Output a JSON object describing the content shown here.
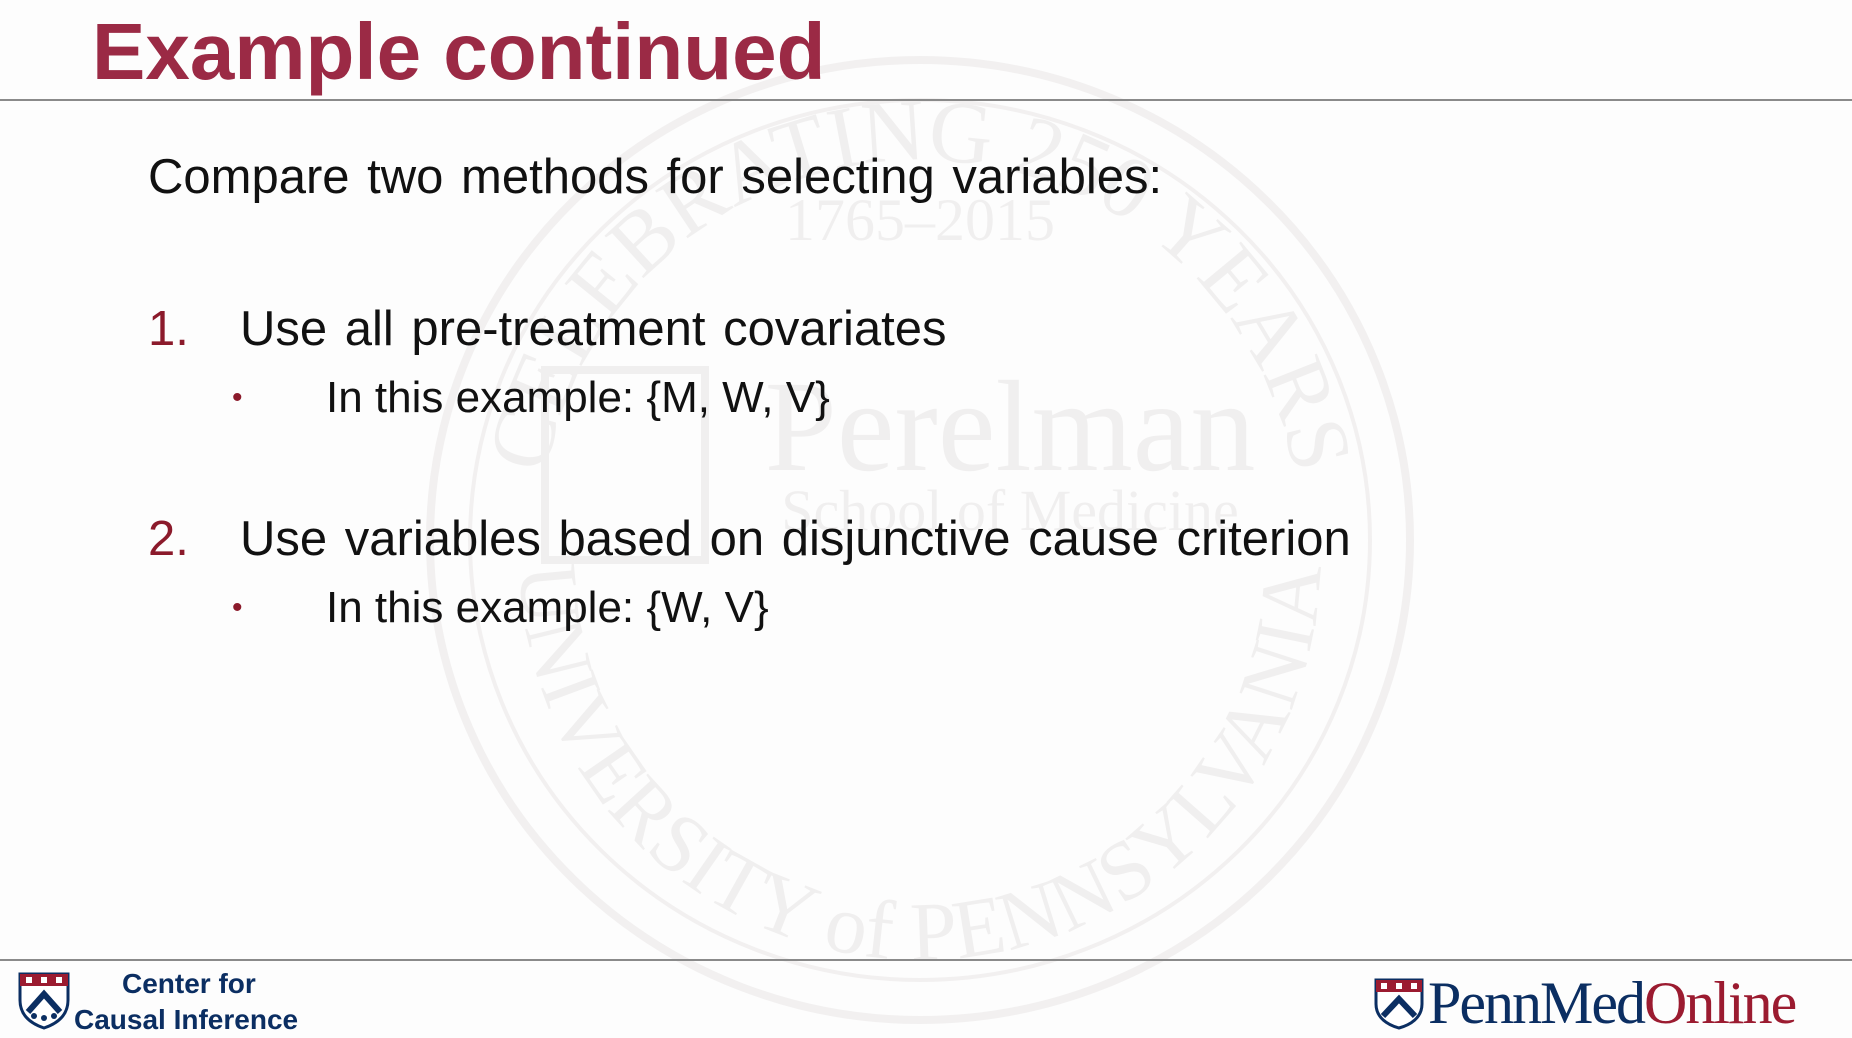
{
  "slide": {
    "title": "Example continued",
    "intro": "Compare two methods for selecting variables:",
    "items": [
      {
        "number": "1.",
        "text": "Use all pre-treatment covariates",
        "bullet": "•",
        "sub": "In this example: {M, W, V}"
      },
      {
        "number": "2.",
        "text": "Use variables based on disjunctive cause criterion",
        "bullet": "•",
        "sub": "In this example: {W, V}"
      }
    ]
  },
  "watermark": {
    "arc_top": "CELEBRATING 250 YEARS",
    "years": "1765–2015",
    "name": "Perelman",
    "school": "School of Medicine",
    "arc_bottom": "UNIVERSITY of PENNSYLVANIA"
  },
  "footer": {
    "cci_line1": "Center for",
    "cci_line2": "Causal Inference",
    "pmo_penn": "Penn",
    "pmo_med": "Med",
    "pmo_online": "Online"
  },
  "colors": {
    "title": "#9b2a45",
    "number": "#8b1a2b",
    "navy": "#0b2e62",
    "online_red": "#9b1b30"
  },
  "icons": {
    "cci_logo": "penn-shield-icon",
    "pmo_logo": "penn-shield-icon",
    "watermark": "university-seal-icon"
  }
}
